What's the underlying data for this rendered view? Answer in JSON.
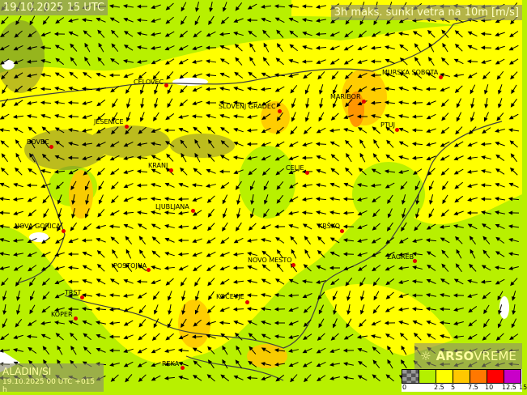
{
  "title_left": "19.10.2025 15 UTC",
  "title_right": "3h maks. sunki vetra na 10m [m/s]",
  "model": {
    "name": "ALADIN/SI",
    "run": "19.10.2025 00 UTC +015 h"
  },
  "brand": {
    "icon": "sun-icon",
    "bold": "ARSO",
    "light": "VREME"
  },
  "legend": {
    "colors": [
      "#888888",
      "#b4f000",
      "#ffff00",
      "#ffc800",
      "#ff7800",
      "#ff0000",
      "#c800c8"
    ],
    "ticks": [
      "0",
      "2.5",
      "5",
      "7.5",
      "10",
      "12.5",
      "15"
    ]
  },
  "cities": [
    {
      "name": "CELOVEC"
    },
    {
      "name": "SLOVENJ GRADEC"
    },
    {
      "name": "MARIBOR"
    },
    {
      "name": "MURSKA SOBOTA"
    },
    {
      "name": "PTUJ"
    },
    {
      "name": "JESENICE"
    },
    {
      "name": "BOVEC"
    },
    {
      "name": "KRANJ"
    },
    {
      "name": "CELJE"
    },
    {
      "name": "LJUBLJANA"
    },
    {
      "name": "NOVA GORICA"
    },
    {
      "name": "KRŠKO"
    },
    {
      "name": "ZAGREB"
    },
    {
      "name": "POSTOJNA"
    },
    {
      "name": "NOVO MESTO"
    },
    {
      "name": "TRST"
    },
    {
      "name": "KOČEVJE"
    },
    {
      "name": "KOPER"
    },
    {
      "name": "REKA"
    }
  ],
  "colors": {
    "city_dot": "#e00000",
    "border": "#404040"
  }
}
